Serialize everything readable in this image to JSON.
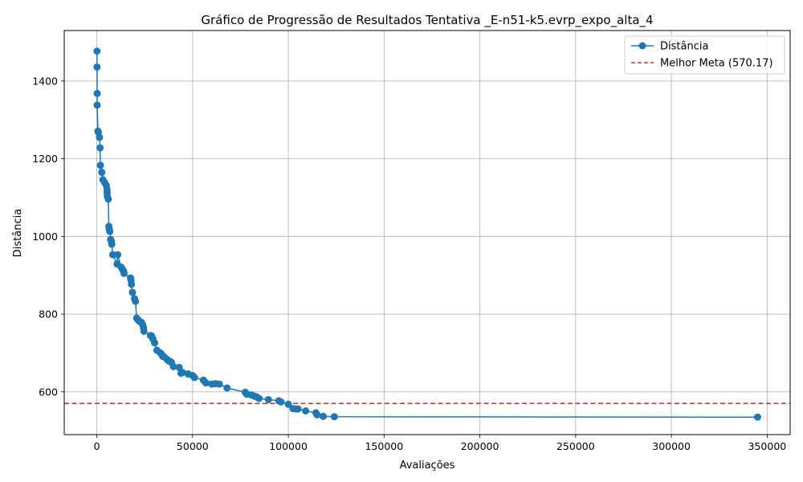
{
  "chart_data": {
    "type": "line",
    "title": "Gráfico de Progressão de Resultados Tentativa _E-n51-k5.evrp_expo_alta_4",
    "xlabel": "Avaliações",
    "ylabel": "Distância",
    "xlim": [
      -17000,
      362000
    ],
    "ylim": [
      490,
      1530
    ],
    "xticks": [
      0,
      50000,
      100000,
      150000,
      200000,
      250000,
      300000,
      350000
    ],
    "yticks": [
      600,
      800,
      1000,
      1200,
      1400
    ],
    "grid": true,
    "legend_position": "top-right",
    "series": [
      {
        "name": "Distância",
        "color": "#1f77b4",
        "marker": "circle",
        "points": [
          [
            100,
            1477
          ],
          [
            100,
            1436
          ],
          [
            200,
            1368
          ],
          [
            200,
            1338
          ],
          [
            600,
            1271
          ],
          [
            800,
            1268
          ],
          [
            1400,
            1255
          ],
          [
            1700,
            1228
          ],
          [
            1900,
            1183
          ],
          [
            2600,
            1165
          ],
          [
            3200,
            1146
          ],
          [
            4200,
            1138
          ],
          [
            5000,
            1131
          ],
          [
            5300,
            1121
          ],
          [
            5400,
            1113
          ],
          [
            5500,
            1103
          ],
          [
            6000,
            1096
          ],
          [
            6300,
            1026
          ],
          [
            6500,
            1019
          ],
          [
            6800,
            1013
          ],
          [
            7200,
            992
          ],
          [
            7600,
            988
          ],
          [
            7800,
            980
          ],
          [
            8300,
            953
          ],
          [
            10600,
            929
          ],
          [
            10900,
            953
          ],
          [
            12700,
            921
          ],
          [
            13300,
            916
          ],
          [
            14000,
            911
          ],
          [
            14200,
            905
          ],
          [
            17600,
            893
          ],
          [
            17900,
            887
          ],
          [
            18100,
            877
          ],
          [
            18600,
            856
          ],
          [
            19700,
            840
          ],
          [
            20200,
            833
          ],
          [
            20800,
            790
          ],
          [
            21600,
            785
          ],
          [
            22100,
            782
          ],
          [
            23300,
            779
          ],
          [
            24000,
            772
          ],
          [
            24400,
            765
          ],
          [
            24600,
            756
          ],
          [
            28000,
            745
          ],
          [
            28600,
            744
          ],
          [
            29300,
            736
          ],
          [
            30200,
            726
          ],
          [
            31400,
            707
          ],
          [
            33200,
            700
          ],
          [
            33800,
            697
          ],
          [
            34500,
            691
          ],
          [
            35200,
            690
          ],
          [
            36800,
            683
          ],
          [
            37500,
            680
          ],
          [
            38200,
            678
          ],
          [
            39000,
            676
          ],
          [
            40000,
            665
          ],
          [
            43000,
            663
          ],
          [
            44000,
            648
          ],
          [
            44800,
            650
          ],
          [
            47700,
            646
          ],
          [
            50000,
            642
          ],
          [
            51000,
            637
          ],
          [
            55700,
            630
          ],
          [
            57000,
            623
          ],
          [
            60000,
            620
          ],
          [
            62000,
            621
          ],
          [
            64000,
            620
          ],
          [
            68000,
            610
          ],
          [
            77500,
            599
          ],
          [
            78300,
            594
          ],
          [
            80700,
            592
          ],
          [
            82300,
            589
          ],
          [
            83400,
            587
          ],
          [
            84700,
            583
          ],
          [
            89600,
            580
          ],
          [
            95000,
            577
          ],
          [
            96200,
            574
          ],
          [
            100000,
            568
          ],
          [
            102400,
            557
          ],
          [
            104000,
            556
          ],
          [
            105000,
            556
          ],
          [
            109000,
            551
          ],
          [
            114400,
            546
          ],
          [
            115000,
            541
          ],
          [
            118200,
            537
          ],
          [
            124000,
            536
          ],
          [
            345000,
            535
          ]
        ]
      },
      {
        "name": "Melhor Meta (570.17)",
        "color": "#d62728",
        "style": "dashed",
        "y": 570.17
      }
    ]
  }
}
